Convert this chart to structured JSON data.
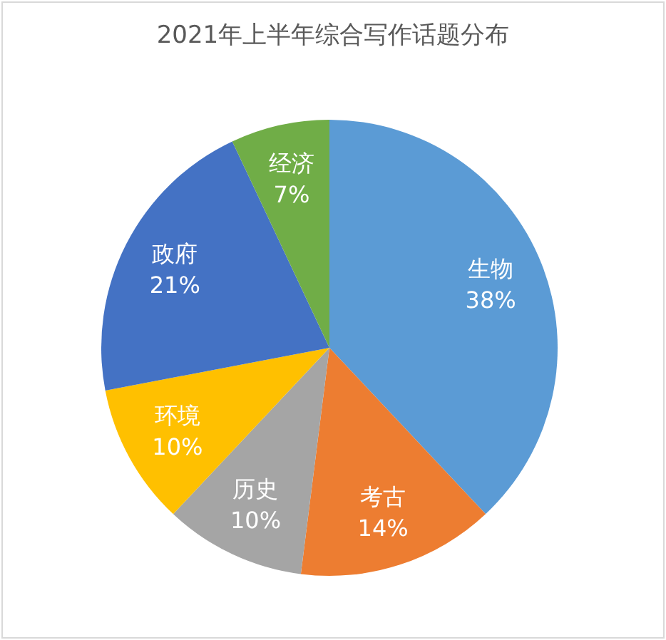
{
  "chart_data": {
    "type": "pie",
    "title": "2021年上半年综合写作话题分布",
    "categories": [
      "生物",
      "考古",
      "历史",
      "环境",
      "政府",
      "经济"
    ],
    "values": [
      38,
      14,
      10,
      10,
      21,
      7
    ],
    "value_labels": [
      "38%",
      "14%",
      "10%",
      "10%",
      "21%",
      "7%"
    ],
    "colors": [
      "#5b9bd5",
      "#ed7d31",
      "#a5a5a5",
      "#ffc000",
      "#4472c4",
      "#70ad47"
    ],
    "legend": false
  }
}
